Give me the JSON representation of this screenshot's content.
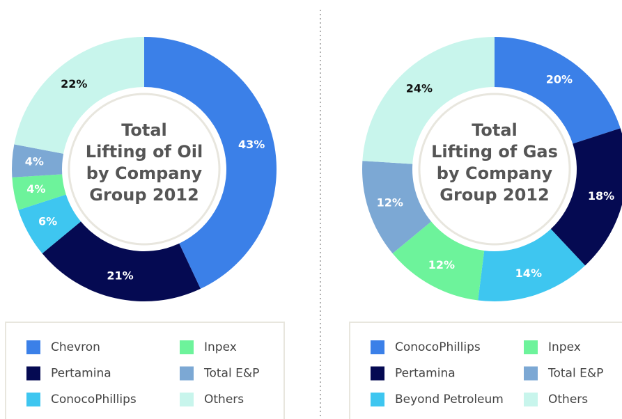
{
  "chart_data": [
    {
      "type": "pie",
      "title": [
        "Total",
        "Lifting of Oil",
        "by Company",
        "Group 2012"
      ],
      "categories": [
        "Chevron",
        "Pertamina",
        "ConocoPhillips",
        "Inpex",
        "Total E&P",
        "Others"
      ],
      "values": [
        43,
        21,
        6,
        4,
        4,
        22
      ],
      "value_labels": [
        "43%",
        "21%",
        "6%",
        "4%",
        "4%",
        "22%"
      ],
      "colors": [
        "#3b80e8",
        "#050a52",
        "#3ec6f0",
        "#6df39b",
        "#7ca8d4",
        "#c8f5ec"
      ]
    },
    {
      "type": "pie",
      "title": [
        "Total",
        "Lifting of Gas",
        "by Company",
        "Group 2012"
      ],
      "categories": [
        "ConocoPhillips",
        "Pertamina",
        "Beyond Petroleum",
        "Inpex",
        "Total E&P",
        "Others"
      ],
      "values": [
        20,
        18,
        14,
        12,
        12,
        24
      ],
      "value_labels": [
        "20%",
        "18%",
        "14%",
        "12%",
        "12%",
        "24%"
      ],
      "colors": [
        "#3b80e8",
        "#050a52",
        "#3ec6f0",
        "#6df39b",
        "#7ca8d4",
        "#c8f5ec"
      ]
    }
  ]
}
